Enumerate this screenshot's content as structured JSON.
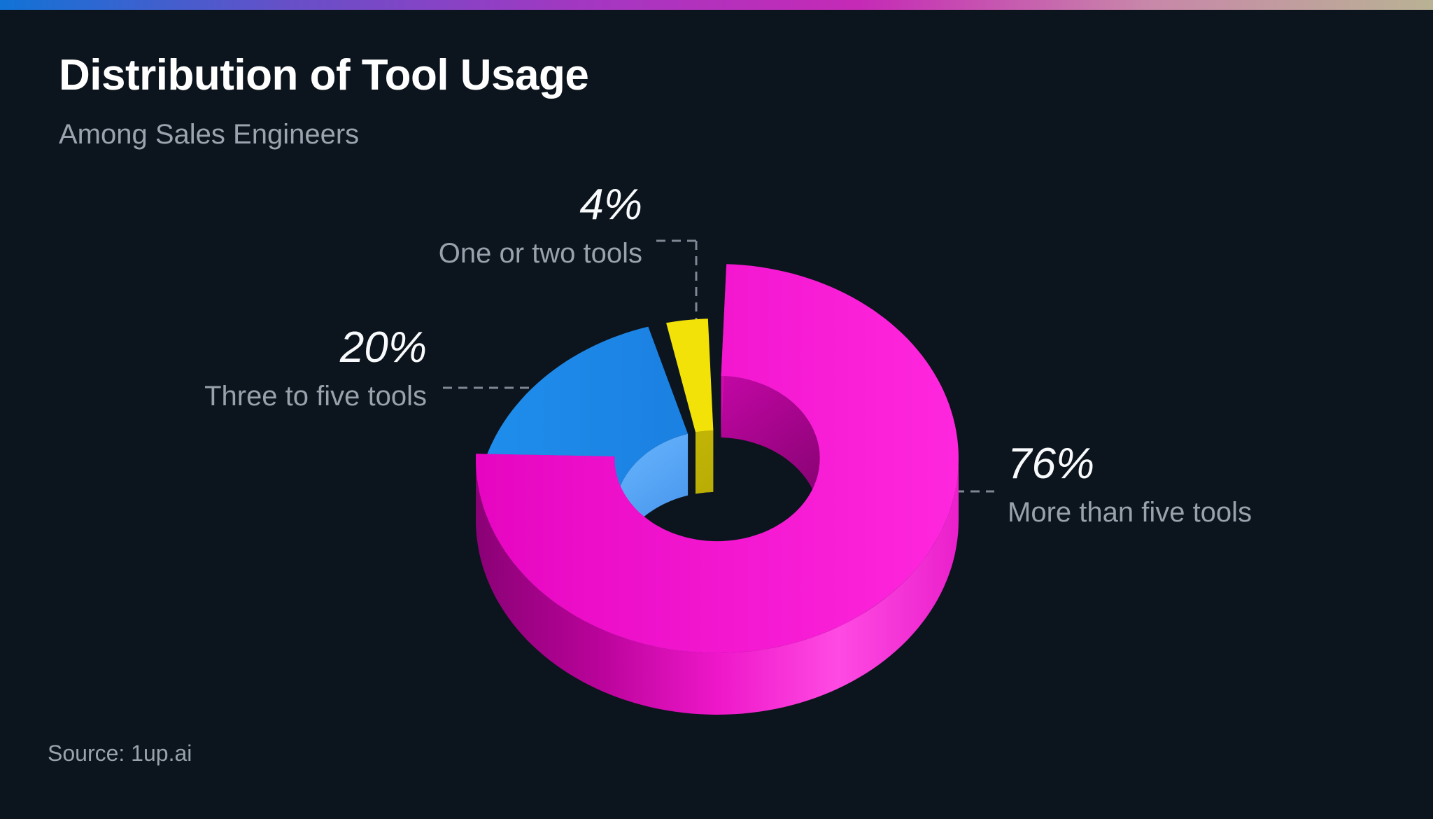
{
  "background": "#0c141d",
  "top_bar": {
    "gradient": [
      "#1173d6",
      "#6650c8",
      "#a238c2",
      "#c52ab6",
      "#c887a9",
      "#b9b294"
    ]
  },
  "header": {
    "title": "Distribution of Tool Usage",
    "subtitle": "Among Sales Engineers"
  },
  "source": {
    "label": "Source: 1up.ai"
  },
  "callout_line_color": "#7e8894",
  "chart_data": {
    "type": "pie",
    "variant": "3d-donut",
    "title": "Distribution of Tool Usage",
    "subtitle": "Among Sales Engineers",
    "legend_position": "callout-labels",
    "start_angle_deg": 0,
    "direction": "clockwise",
    "slices": [
      {
        "label": "More than five tools",
        "pct_label": "76%",
        "value_pct": 76,
        "color": "#f50bd0",
        "top_colors": [
          "#e606c1",
          "#ff27de"
        ],
        "side_colors": [
          "#8a0175",
          "#b80399",
          "#ee17c9",
          "#ff4ae3",
          "#ea20cb"
        ],
        "inner_colors": [
          "#db08ba",
          "#6e015d"
        ],
        "cut_colors": [
          "#d00cb0",
          "#95027d"
        ]
      },
      {
        "label": "Three to five tools",
        "pct_label": "20%",
        "value_pct": 20,
        "color": "#1b87e8",
        "top_colors": [
          "#1f8eec",
          "#156fd4"
        ],
        "inner_colors": [
          "#6ab8ff",
          "#1663d2"
        ]
      },
      {
        "label": "One or two tools",
        "pct_label": "4%",
        "value_pct": 4,
        "color": "#f5e509",
        "top_colors": [
          "#f5e509",
          "#f0df08"
        ],
        "inner_colors": [
          "#cabc06",
          "#9d9304"
        ]
      }
    ]
  }
}
